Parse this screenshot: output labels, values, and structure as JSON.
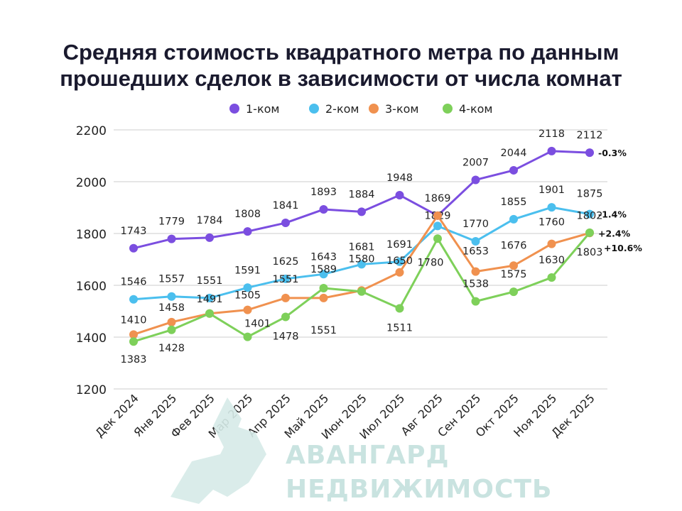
{
  "chart_data": {
    "type": "line",
    "title": "Средняя стоимость квадратного метра по данным прошедших сделок в зависимости от числа комнат",
    "xlabel": "",
    "ylabel": "",
    "ylim": [
      1200,
      2200
    ],
    "yticks": [
      1200,
      1400,
      1600,
      1800,
      2000,
      2200
    ],
    "grid": true,
    "legend_position": "top-center",
    "categories": [
      "Дек 2024",
      "Янв 2025",
      "Фев 2025",
      "Мар 2025",
      "Апр 2025",
      "Май 2025",
      "Июн 2025",
      "Июл 2025",
      "Авг 2025",
      "Сен 2025",
      "Окт 2025",
      "Ноя 2025",
      "Дек 2025"
    ],
    "series": [
      {
        "name": "1-ком",
        "color": "#7b4ee0",
        "values": [
          1743,
          1779,
          1784,
          1808,
          1841,
          1893,
          1884,
          1948,
          1869,
          2007,
          2044,
          2118,
          2112
        ],
        "change": "-0.3%"
      },
      {
        "name": "2-ком",
        "color": "#4bbfee",
        "values": [
          1546,
          1557,
          1551,
          1591,
          1625,
          1643,
          1681,
          1691,
          1829,
          1770,
          1855,
          1901,
          1875
        ],
        "change": "-1.4%"
      },
      {
        "name": "3-ком",
        "color": "#f0914f",
        "values": [
          1410,
          1458,
          1491,
          1505,
          1551,
          1551,
          1580,
          1650,
          1869,
          1653,
          1676,
          1760,
          1802
        ],
        "change": "+2.4%"
      },
      {
        "name": "4-ком",
        "color": "#7ed05a",
        "values": [
          1383,
          1428,
          1491,
          1401,
          1478,
          1589,
          1576,
          1511,
          1780,
          1538,
          1575,
          1630,
          1803
        ],
        "change": "+10.6%"
      }
    ]
  },
  "watermark": {
    "line1": "АВАНГАРД",
    "line2": "НЕДВИЖИМОСТЬ"
  }
}
